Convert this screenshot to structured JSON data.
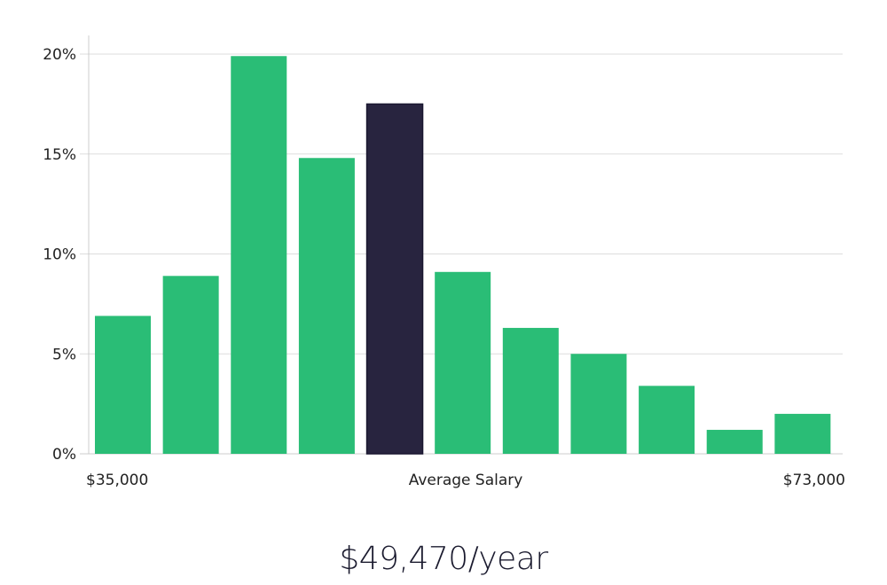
{
  "chart_data": {
    "type": "bar",
    "title": "",
    "xlabel": "Average Salary",
    "ylabel": "",
    "ylim": [
      0,
      20
    ],
    "yticks": [
      "0%",
      "5%",
      "10%",
      "15%",
      "20%"
    ],
    "ytick_values": [
      0,
      5,
      10,
      15,
      20
    ],
    "x_range_labels": {
      "min": "$35,000",
      "max": "$73,000"
    },
    "values": [
      6.9,
      8.9,
      19.9,
      14.8,
      17.5,
      9.1,
      6.3,
      5.0,
      3.4,
      1.2,
      2.0
    ],
    "highlight_index": 4,
    "grid": true,
    "colors": {
      "bar": "#2abd76",
      "highlight": "#28243f",
      "grid": "#dddddd",
      "axis": "#cccccc"
    }
  },
  "headline": "$49,470/year"
}
